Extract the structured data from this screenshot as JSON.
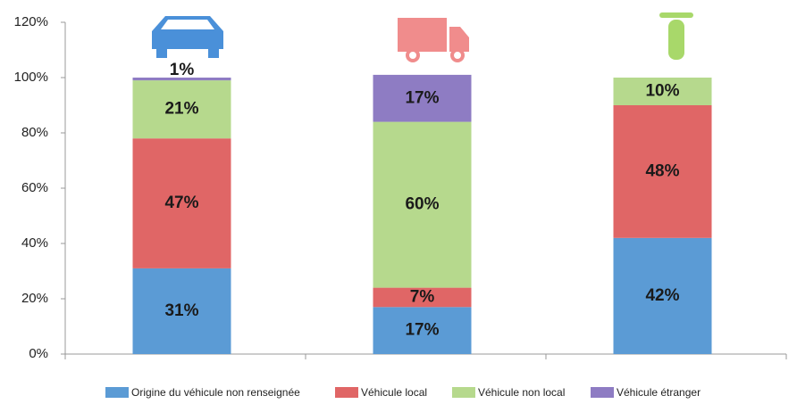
{
  "chart_data": {
    "type": "stacked_bar",
    "categories": [
      null,
      null,
      null
    ],
    "series": [
      {
        "name": "Origine du véhicule non renseignée",
        "color": "#5b9bd5",
        "values": [
          31,
          17,
          42
        ],
        "value_labels": [
          "31%",
          "17%",
          "42%"
        ]
      },
      {
        "name": "Véhicule local",
        "color": "#e06666",
        "values": [
          47,
          7,
          48
        ],
        "value_labels": [
          "47%",
          "7%",
          "48%"
        ]
      },
      {
        "name": "Véhicule non local",
        "color": "#b6d98d",
        "values": [
          21,
          60,
          10
        ],
        "value_labels": [
          "21%",
          "60%",
          "10%"
        ]
      },
      {
        "name": "Véhicule étranger",
        "color": "#8e7cc3",
        "values": [
          1,
          17,
          0
        ],
        "value_labels": [
          "1%",
          "17%",
          null
        ]
      }
    ],
    "ylim": [
      0,
      120
    ],
    "yticks": [
      {
        "value": 0,
        "label": "0%"
      },
      {
        "value": 20,
        "label": "20%"
      },
      {
        "value": 40,
        "label": "40%"
      },
      {
        "value": 60,
        "label": "60%"
      },
      {
        "value": 80,
        "label": "80%"
      },
      {
        "value": 100,
        "label": "100%"
      },
      {
        "value": 120,
        "label": "120%"
      }
    ],
    "grid": false,
    "legend": "bottom"
  }
}
